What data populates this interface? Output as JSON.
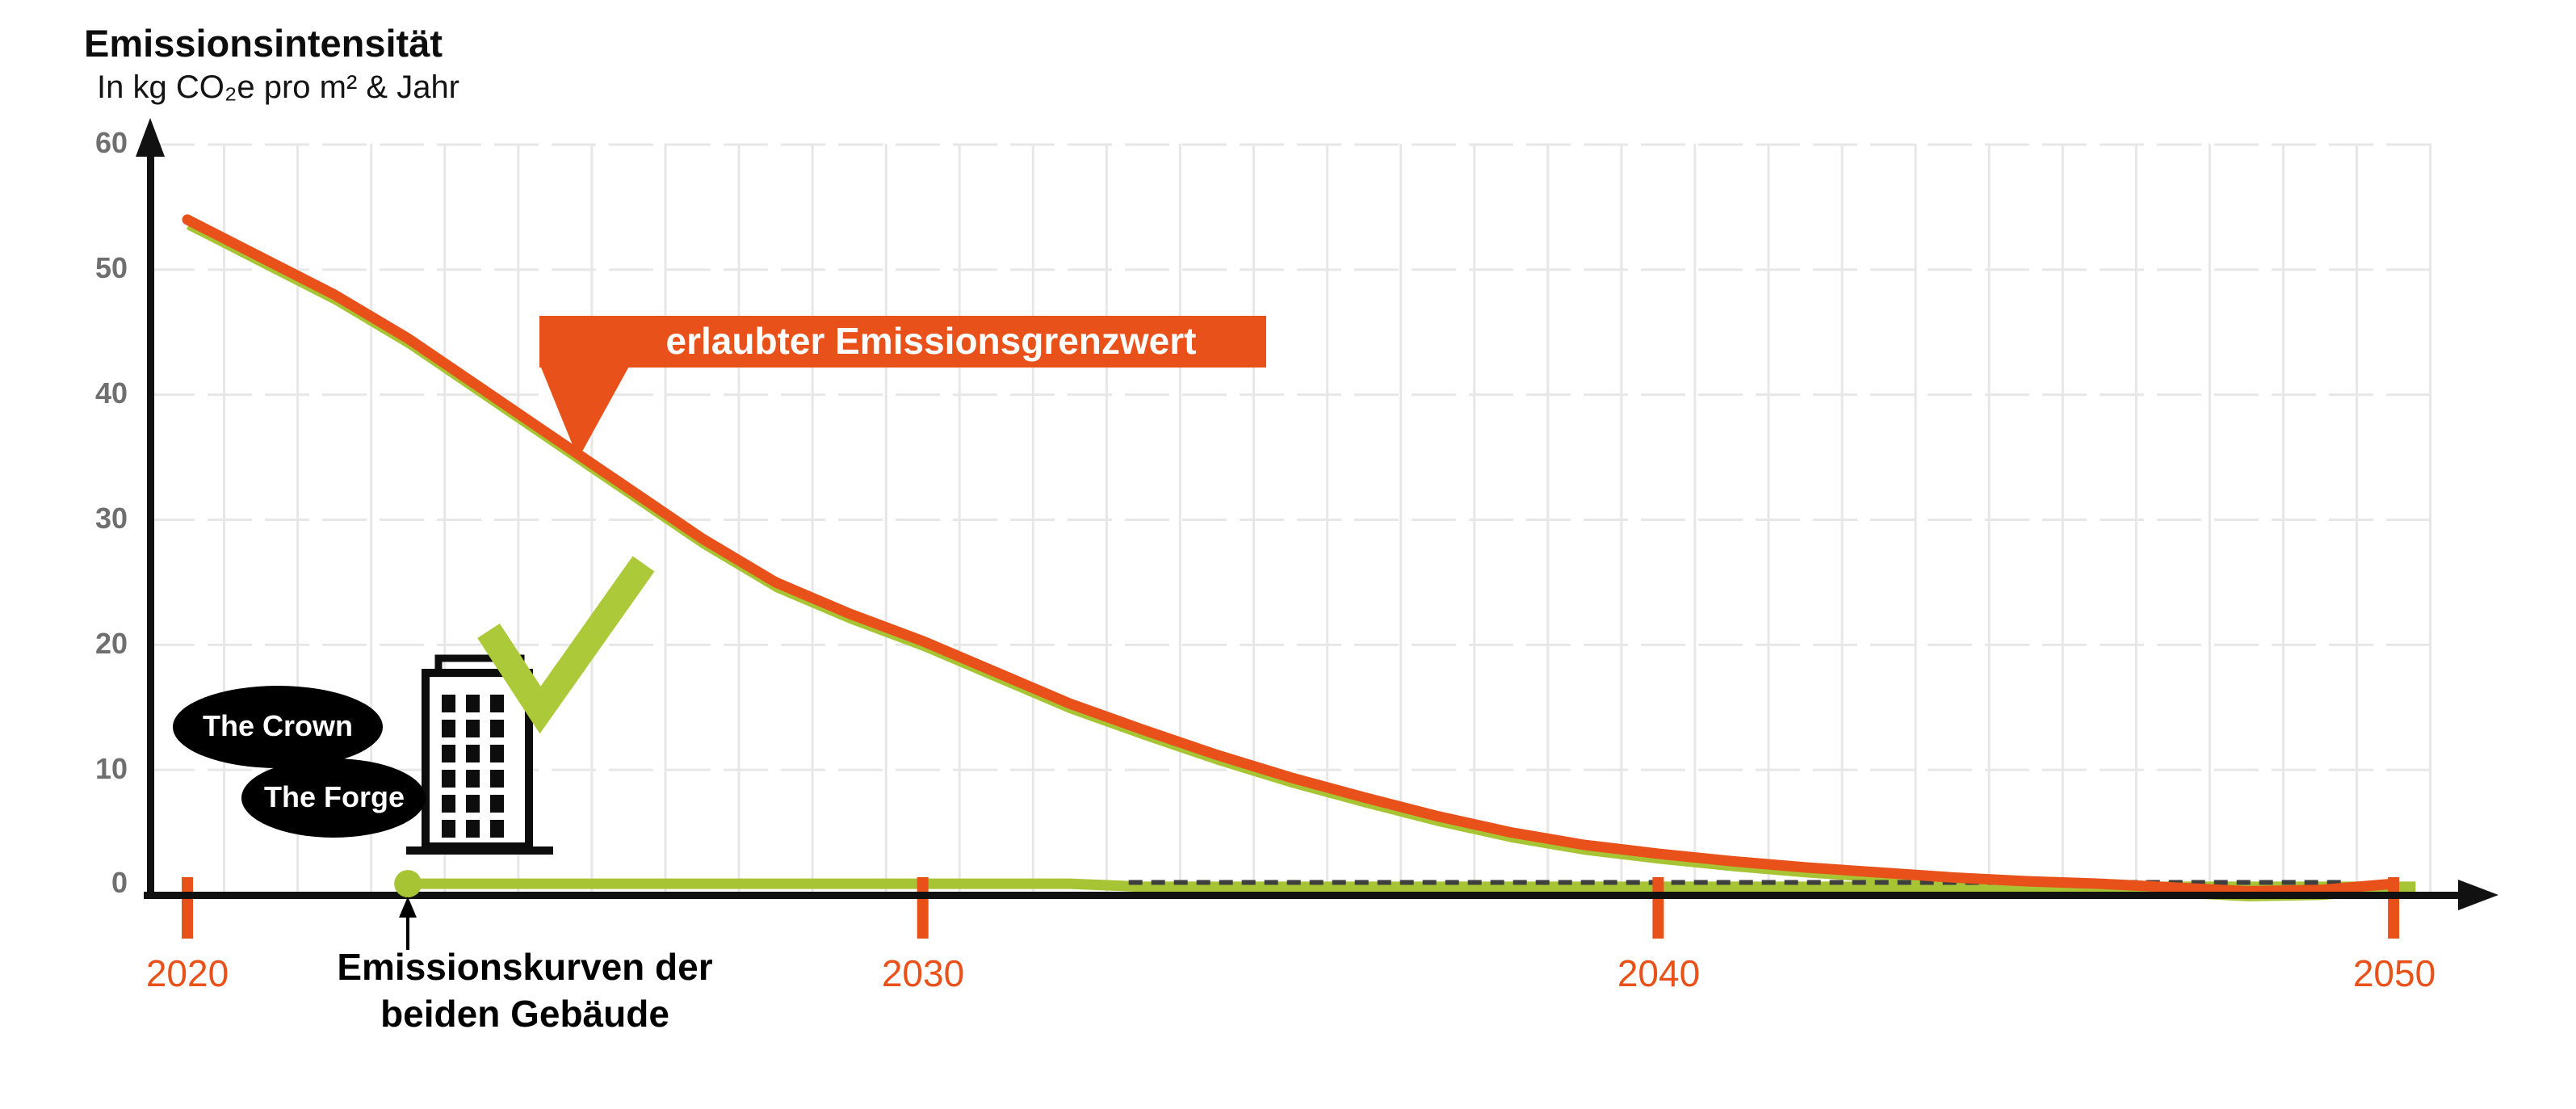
{
  "header": {
    "title": "Emissionsintensität",
    "subtitle": "In kg CO₂e pro m² & Jahr"
  },
  "chart_data": {
    "type": "line",
    "title": "Emissionsintensität",
    "ylabel": "In kg CO₂e pro m² & Jahr",
    "xlabel": "",
    "xlim": [
      2020,
      2050
    ],
    "ylim": [
      0,
      60
    ],
    "grid": true,
    "legend_position": "none",
    "x_ticks": [
      2020,
      2030,
      2040,
      2050
    ],
    "x_tick_labels": [
      "2020",
      "2030",
      "2040",
      "2050"
    ],
    "y_ticks": [
      60,
      50,
      40,
      30,
      20,
      10,
      0
    ],
    "y_tick_labels": [
      "60",
      "50",
      "40",
      "30",
      "20",
      "10",
      "0"
    ],
    "series": [
      {
        "name": "erlaubter Emissionsgrenzwert",
        "color": "#e8511a",
        "style": "solid",
        "width": 13,
        "x": [
          2020,
          2021,
          2022,
          2023,
          2024,
          2025,
          2026,
          2027,
          2028,
          2029,
          2030,
          2031,
          2032,
          2033,
          2034,
          2035,
          2036,
          2037,
          2038,
          2039,
          2040,
          2041,
          2042,
          2043,
          2044,
          2045,
          2046,
          2047,
          2048,
          2049,
          2050
        ],
        "y": [
          54,
          51,
          48,
          44.5,
          40.5,
          36.5,
          32.5,
          28.5,
          25,
          22.5,
          20.3,
          17.8,
          15.3,
          13.2,
          11.2,
          9.4,
          7.8,
          6.3,
          5,
          4,
          3.3,
          2.7,
          2.2,
          1.8,
          1.4,
          1.1,
          0.9,
          0.6,
          0.3,
          0.4,
          0.9
        ]
      },
      {
        "name": "The Crown (Emissionskurve Gebäude, grün)",
        "color": "#a6c433",
        "style": "solid",
        "width": 13,
        "start_marker": true,
        "x": [
          2023,
          2032,
          2033,
          2050.3
        ],
        "y": [
          0.9,
          0.9,
          0.65,
          0.65
        ]
      },
      {
        "name": "The Forge (Emissionskurve Gebäude, gestrichelt)",
        "color": "#3f3f3f",
        "style": "dashed",
        "width": 6,
        "x": [
          2032.8,
          2049.4
        ],
        "y": [
          1.0,
          1.0
        ]
      }
    ],
    "annotations": {
      "limit_label": "erlaubter Emissionsgrenzwert",
      "building_1": "The Crown",
      "building_2": "The Forge",
      "buildings_label_line1": "Emissionskurven der",
      "buildings_label_line2": "beiden Gebäude"
    }
  },
  "colors": {
    "orange": "#e8511a",
    "green": "#a6c433",
    "dashed_line": "#3f3f3f",
    "axis": "#111111",
    "grid": "#e7e7e7",
    "y_label_gray": "#6f6f6f",
    "oval_black": "#000000",
    "text_white": "#ffffff"
  }
}
